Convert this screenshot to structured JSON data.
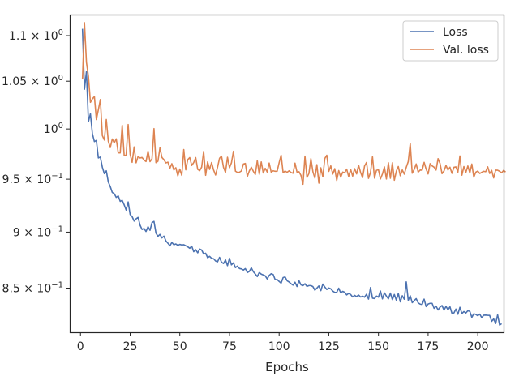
{
  "chart_data": {
    "type": "line",
    "xlabel": "Epochs",
    "ylabel": "",
    "yscale": "log",
    "xlim": [
      -5,
      213
    ],
    "ylim": [
      0.8125,
      1.123
    ],
    "xticks": [
      0,
      25,
      50,
      75,
      100,
      125,
      150,
      175,
      200
    ],
    "yticks": [
      {
        "value": 0.85,
        "mantissa": "8.5",
        "exponent": "−1"
      },
      {
        "value": 0.9,
        "mantissa": "9",
        "exponent": "−1"
      },
      {
        "value": 0.95,
        "mantissa": "9.5",
        "exponent": "−1"
      },
      {
        "value": 1.0,
        "mantissa": "",
        "exponent": "0"
      },
      {
        "value": 1.05,
        "mantissa": "1.05",
        "exponent": "0"
      },
      {
        "value": 1.1,
        "mantissa": "1.1",
        "exponent": "0"
      }
    ],
    "grid": false,
    "legend": "top-right",
    "series": [
      {
        "name": "Loss",
        "color": "#4c72b0",
        "x_start": 1,
        "values": [
          1.1077,
          1.0414,
          1.0604,
          1.0075,
          1.0156,
          0.9951,
          0.9872,
          0.9883,
          0.9708,
          0.9717,
          0.9617,
          0.9554,
          0.9582,
          0.9473,
          0.9428,
          0.9372,
          0.936,
          0.9325,
          0.9339,
          0.9287,
          0.9297,
          0.9254,
          0.9205,
          0.9282,
          0.9163,
          0.9143,
          0.9102,
          0.9123,
          0.9136,
          0.9064,
          0.9024,
          0.9034,
          0.9006,
          0.905,
          0.9017,
          0.9088,
          0.9099,
          0.8991,
          0.8962,
          0.8979,
          0.8947,
          0.8963,
          0.892,
          0.8899,
          0.8875,
          0.8906,
          0.8885,
          0.8892,
          0.8879,
          0.8888,
          0.8883,
          0.8885,
          0.8876,
          0.8866,
          0.8853,
          0.8872,
          0.8822,
          0.884,
          0.8812,
          0.8846,
          0.8837,
          0.8801,
          0.8808,
          0.8768,
          0.878,
          0.8762,
          0.8759,
          0.8739,
          0.8731,
          0.8771,
          0.8728,
          0.8716,
          0.8748,
          0.8697,
          0.8763,
          0.8704,
          0.8722,
          0.868,
          0.8693,
          0.8672,
          0.8668,
          0.8658,
          0.8671,
          0.8636,
          0.8646,
          0.8678,
          0.8644,
          0.8623,
          0.8601,
          0.8637,
          0.8622,
          0.8615,
          0.8607,
          0.858,
          0.8611,
          0.8626,
          0.8619,
          0.8574,
          0.8575,
          0.8558,
          0.8543,
          0.8592,
          0.8597,
          0.8564,
          0.8553,
          0.8538,
          0.8526,
          0.8551,
          0.8514,
          0.8564,
          0.8528,
          0.8522,
          0.8538,
          0.8515,
          0.8522,
          0.8522,
          0.8513,
          0.8482,
          0.85,
          0.8519,
          0.8478,
          0.8535,
          0.851,
          0.8488,
          0.8501,
          0.8494,
          0.8474,
          0.8463,
          0.8464,
          0.8499,
          0.8459,
          0.8472,
          0.8464,
          0.8441,
          0.8454,
          0.8445,
          0.8424,
          0.8437,
          0.8426,
          0.844,
          0.8423,
          0.843,
          0.8422,
          0.8447,
          0.8405,
          0.8505,
          0.8413,
          0.841,
          0.8431,
          0.8422,
          0.8475,
          0.8407,
          0.8459,
          0.8431,
          0.8407,
          0.8457,
          0.84,
          0.8445,
          0.8396,
          0.8454,
          0.8382,
          0.8434,
          0.8404,
          0.8554,
          0.8395,
          0.8434,
          0.8375,
          0.8392,
          0.8409,
          0.8373,
          0.8362,
          0.8359,
          0.8405,
          0.8341,
          0.8363,
          0.8369,
          0.8369,
          0.8326,
          0.8345,
          0.8313,
          0.8336,
          0.835,
          0.8311,
          0.8343,
          0.8314,
          0.8339,
          0.8284,
          0.8287,
          0.832,
          0.8276,
          0.8335,
          0.8282,
          0.8299,
          0.8286,
          0.8306,
          0.83,
          0.825,
          0.828,
          0.8274,
          0.8264,
          0.8277,
          0.8247,
          0.8268,
          0.8269,
          0.8267,
          0.8266,
          0.8216,
          0.8237,
          0.8198,
          0.8271,
          0.8185,
          0.8197
        ]
      },
      {
        "name": "Val. loss",
        "color": "#dd8452",
        "x_start": 1,
        "values": [
          1.0522,
          1.1147,
          1.0704,
          1.0552,
          1.0275,
          1.0312,
          1.0337,
          1.0096,
          1.0198,
          1.0305,
          0.9933,
          0.9888,
          1.0097,
          0.9876,
          0.9812,
          0.9898,
          0.9859,
          0.99,
          0.9759,
          0.9758,
          1.0037,
          0.973,
          0.9738,
          1.0045,
          0.9743,
          0.9665,
          0.9818,
          0.966,
          0.9724,
          0.9708,
          0.9713,
          0.9688,
          0.9673,
          0.9776,
          0.9672,
          0.97,
          1.0004,
          0.9662,
          0.9676,
          0.981,
          0.9713,
          0.9691,
          0.9659,
          0.9667,
          0.9606,
          0.9652,
          0.959,
          0.9612,
          0.9533,
          0.9599,
          0.9537,
          0.9792,
          0.9591,
          0.9692,
          0.9712,
          0.9634,
          0.9663,
          0.9712,
          0.9596,
          0.9583,
          0.9618,
          0.9773,
          0.9538,
          0.9669,
          0.9595,
          0.9663,
          0.959,
          0.9541,
          0.9617,
          0.9705,
          0.9726,
          0.9615,
          0.9566,
          0.9715,
          0.9612,
          0.9661,
          0.9775,
          0.9578,
          0.9566,
          0.9568,
          0.958,
          0.9648,
          0.9654,
          0.9526,
          0.9581,
          0.9617,
          0.9577,
          0.9546,
          0.9682,
          0.9548,
          0.9669,
          0.9561,
          0.9606,
          0.957,
          0.9658,
          0.9569,
          0.9582,
          0.9577,
          0.9577,
          0.9661,
          0.9736,
          0.9563,
          0.958,
          0.9567,
          0.9582,
          0.9565,
          0.9558,
          0.9657,
          0.9568,
          0.9573,
          0.9536,
          0.9451,
          0.9726,
          0.9517,
          0.9556,
          0.9701,
          0.9573,
          0.9511,
          0.9642,
          0.9462,
          0.9611,
          0.9523,
          0.9703,
          0.9735,
          0.9576,
          0.963,
          0.955,
          0.9603,
          0.9488,
          0.9584,
          0.952,
          0.9569,
          0.9563,
          0.9598,
          0.9526,
          0.9596,
          0.953,
          0.9603,
          0.9551,
          0.9637,
          0.9566,
          0.9516,
          0.9629,
          0.9664,
          0.9508,
          0.9566,
          0.972,
          0.951,
          0.9587,
          0.9592,
          0.9502,
          0.9551,
          0.962,
          0.9502,
          0.9661,
          0.9509,
          0.9662,
          0.949,
          0.9578,
          0.9624,
          0.9534,
          0.959,
          0.9549,
          0.9616,
          0.9673,
          0.9852,
          0.9558,
          0.9595,
          0.9649,
          0.9569,
          0.9589,
          0.9588,
          0.9665,
          0.9598,
          0.9551,
          0.9652,
          0.963,
          0.9617,
          0.9589,
          0.9701,
          0.9654,
          0.9554,
          0.958,
          0.9635,
          0.9589,
          0.9617,
          0.9557,
          0.9616,
          0.962,
          0.9569,
          0.9728,
          0.9539,
          0.9623,
          0.9566,
          0.9629,
          0.9561,
          0.9648,
          0.952,
          0.9568,
          0.9579,
          0.9556,
          0.9567,
          0.9577,
          0.9573,
          0.9621,
          0.9556,
          0.9586,
          0.9512,
          0.9588,
          0.9587,
          0.9577,
          0.9562,
          0.9586,
          0.957
        ]
      }
    ]
  }
}
